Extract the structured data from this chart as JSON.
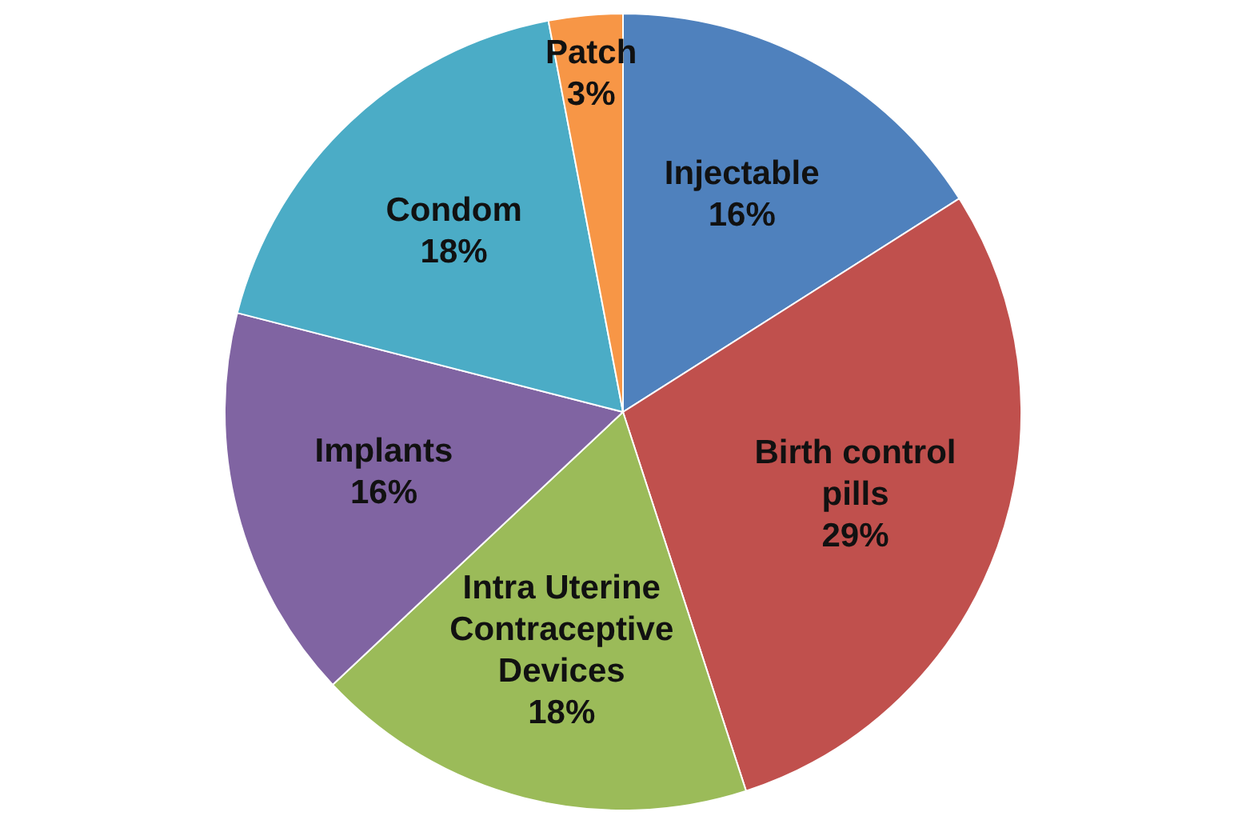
{
  "chart_data": {
    "type": "pie",
    "categories": [
      "Injectable",
      "Birth control pills",
      "Intra Uterine Contraceptive Devices",
      "Implants",
      "Condom",
      "Patch"
    ],
    "values": [
      16,
      29,
      18,
      16,
      18,
      3
    ],
    "value_labels": [
      "16%",
      "29%",
      "18%",
      "16%",
      "18%",
      "3%"
    ],
    "colors": [
      "#4f81bd",
      "#c0504d",
      "#9bbb59",
      "#8064a2",
      "#4bacc6",
      "#f79646"
    ],
    "legend": false
  }
}
